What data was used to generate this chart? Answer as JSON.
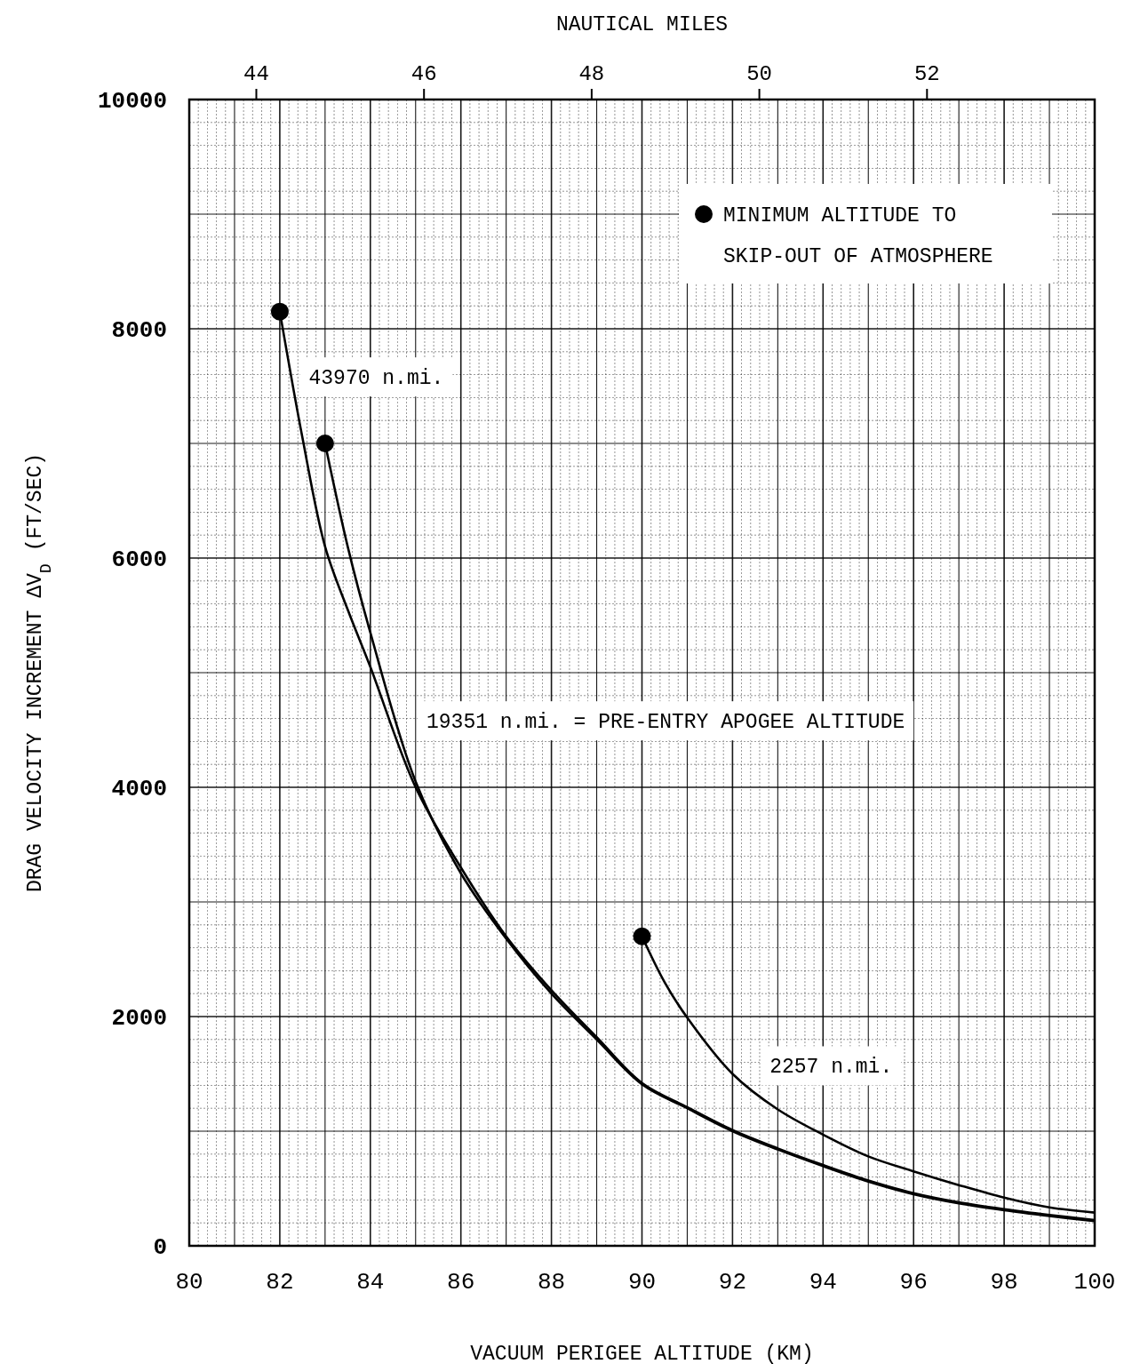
{
  "chart_data": {
    "type": "line",
    "xlabel": "VACUUM PERIGEE ALTITUDE (KM)",
    "ylabel": "DRAG VELOCITY INCREMENT ΔV$_{D}$ (FT/SEC)",
    "x2label": "NAUTICAL MILES",
    "xlim": [
      80,
      100
    ],
    "xticks": [
      80,
      82,
      84,
      86,
      88,
      90,
      92,
      94,
      96,
      98,
      100
    ],
    "x2lim": [
      43.2,
      54.0
    ],
    "x2ticks": [
      44,
      46,
      48,
      50,
      52
    ],
    "ylim": [
      0,
      10000
    ],
    "yticks": [
      0,
      2000,
      4000,
      6000,
      8000,
      10000
    ],
    "grid": true,
    "legend": "top right",
    "line_style": "solid",
    "series": [
      {
        "color": "#000000",
        "x": [
          82,
          82.5,
          83,
          83.5,
          84,
          85,
          86,
          87,
          88,
          89,
          90,
          91,
          92,
          93,
          94,
          95,
          96,
          97,
          98,
          99,
          100
        ],
        "values": [
          8150,
          7050,
          6100,
          5550,
          5050,
          4000,
          3300,
          2700,
          2230,
          1820,
          1420,
          1210,
          1010,
          850,
          705,
          570,
          460,
          380,
          320,
          270,
          225
        ]
      },
      {
        "color": "#000000",
        "x": [
          83,
          83.5,
          84,
          85,
          86,
          87,
          88,
          89,
          90,
          91,
          92,
          93,
          94,
          95,
          96,
          97,
          98,
          99,
          100
        ],
        "values": [
          7000,
          6100,
          5350,
          4050,
          3250,
          2680,
          2200,
          1800,
          1410,
          1200,
          1000,
          840,
          695,
          560,
          450,
          370,
          310,
          260,
          215
        ]
      },
      {
        "color": "#000000",
        "x": [
          90,
          90.5,
          91,
          92,
          93,
          94,
          95,
          96,
          97,
          98,
          99,
          100
        ],
        "values": [
          2700,
          2300,
          1990,
          1500,
          1190,
          970,
          780,
          650,
          530,
          420,
          335,
          290
        ]
      },
      {
        "type": "scatter",
        "marker": "circle",
        "name": "MINIMUM ALTITUDE TO SKIP-OUT OF ATMOSPHERE",
        "color": "#000000",
        "x": [
          82,
          83,
          90
        ],
        "values": [
          8150,
          7000,
          2700
        ]
      }
    ],
    "annotations": [
      "43970 n.mi.",
      "19351 n.mi. = PRE-ENTRY APOGEE ALTITUDE",
      "2257 n.mi."
    ]
  }
}
